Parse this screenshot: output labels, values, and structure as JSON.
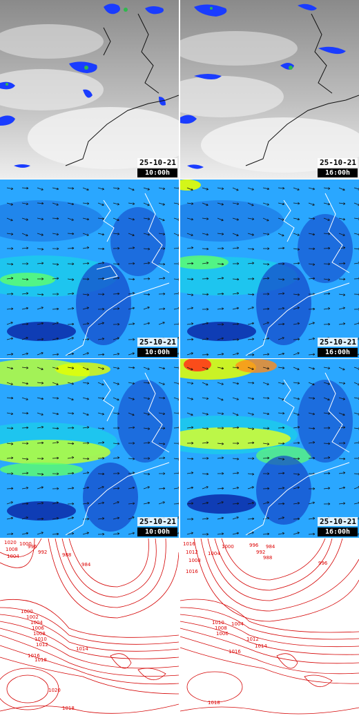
{
  "rows": [
    {
      "id": "satellite",
      "panels": [
        {
          "date": "25-10-21",
          "time": "10:00h"
        },
        {
          "date": "25-10-21",
          "time": "16:00h"
        }
      ]
    },
    {
      "id": "wind-lower",
      "panels": [
        {
          "date": "25-10-21",
          "time": "10:00h"
        },
        {
          "date": "25-10-21",
          "time": "16:00h"
        }
      ]
    },
    {
      "id": "wind-upper",
      "panels": [
        {
          "date": "25-10-21",
          "time": "10:00h"
        },
        {
          "date": "25-10-21",
          "time": "16:00h"
        }
      ]
    },
    {
      "id": "pressure",
      "panels": [
        {
          "date": "",
          "time": ""
        },
        {
          "date": "",
          "time": ""
        }
      ]
    }
  ],
  "isobar_labels": {
    "left": [
      "1020",
      "1008",
      "1004",
      "1000",
      "996",
      "992",
      "988",
      "984",
      "1000",
      "1002",
      "1004",
      "1006",
      "1008",
      "1010",
      "1012",
      "1014",
      "1016",
      "1018",
      "1020",
      "1018"
    ],
    "right": [
      "1016",
      "1012",
      "1008",
      "1004",
      "1000",
      "996",
      "992",
      "988",
      "984",
      "996",
      "1016",
      "1010",
      "1008",
      "1006",
      "1004",
      "1012",
      "1014",
      "1016",
      "1018"
    ]
  },
  "colors": {
    "isobar": "#d40000",
    "coast": "#ffffff",
    "coast_dark": "#111111",
    "precip": "#1a3cff",
    "wind_low": "#0b2fbf",
    "wind_mid": "#00c8ff",
    "wind_high": "#e6ff00"
  }
}
